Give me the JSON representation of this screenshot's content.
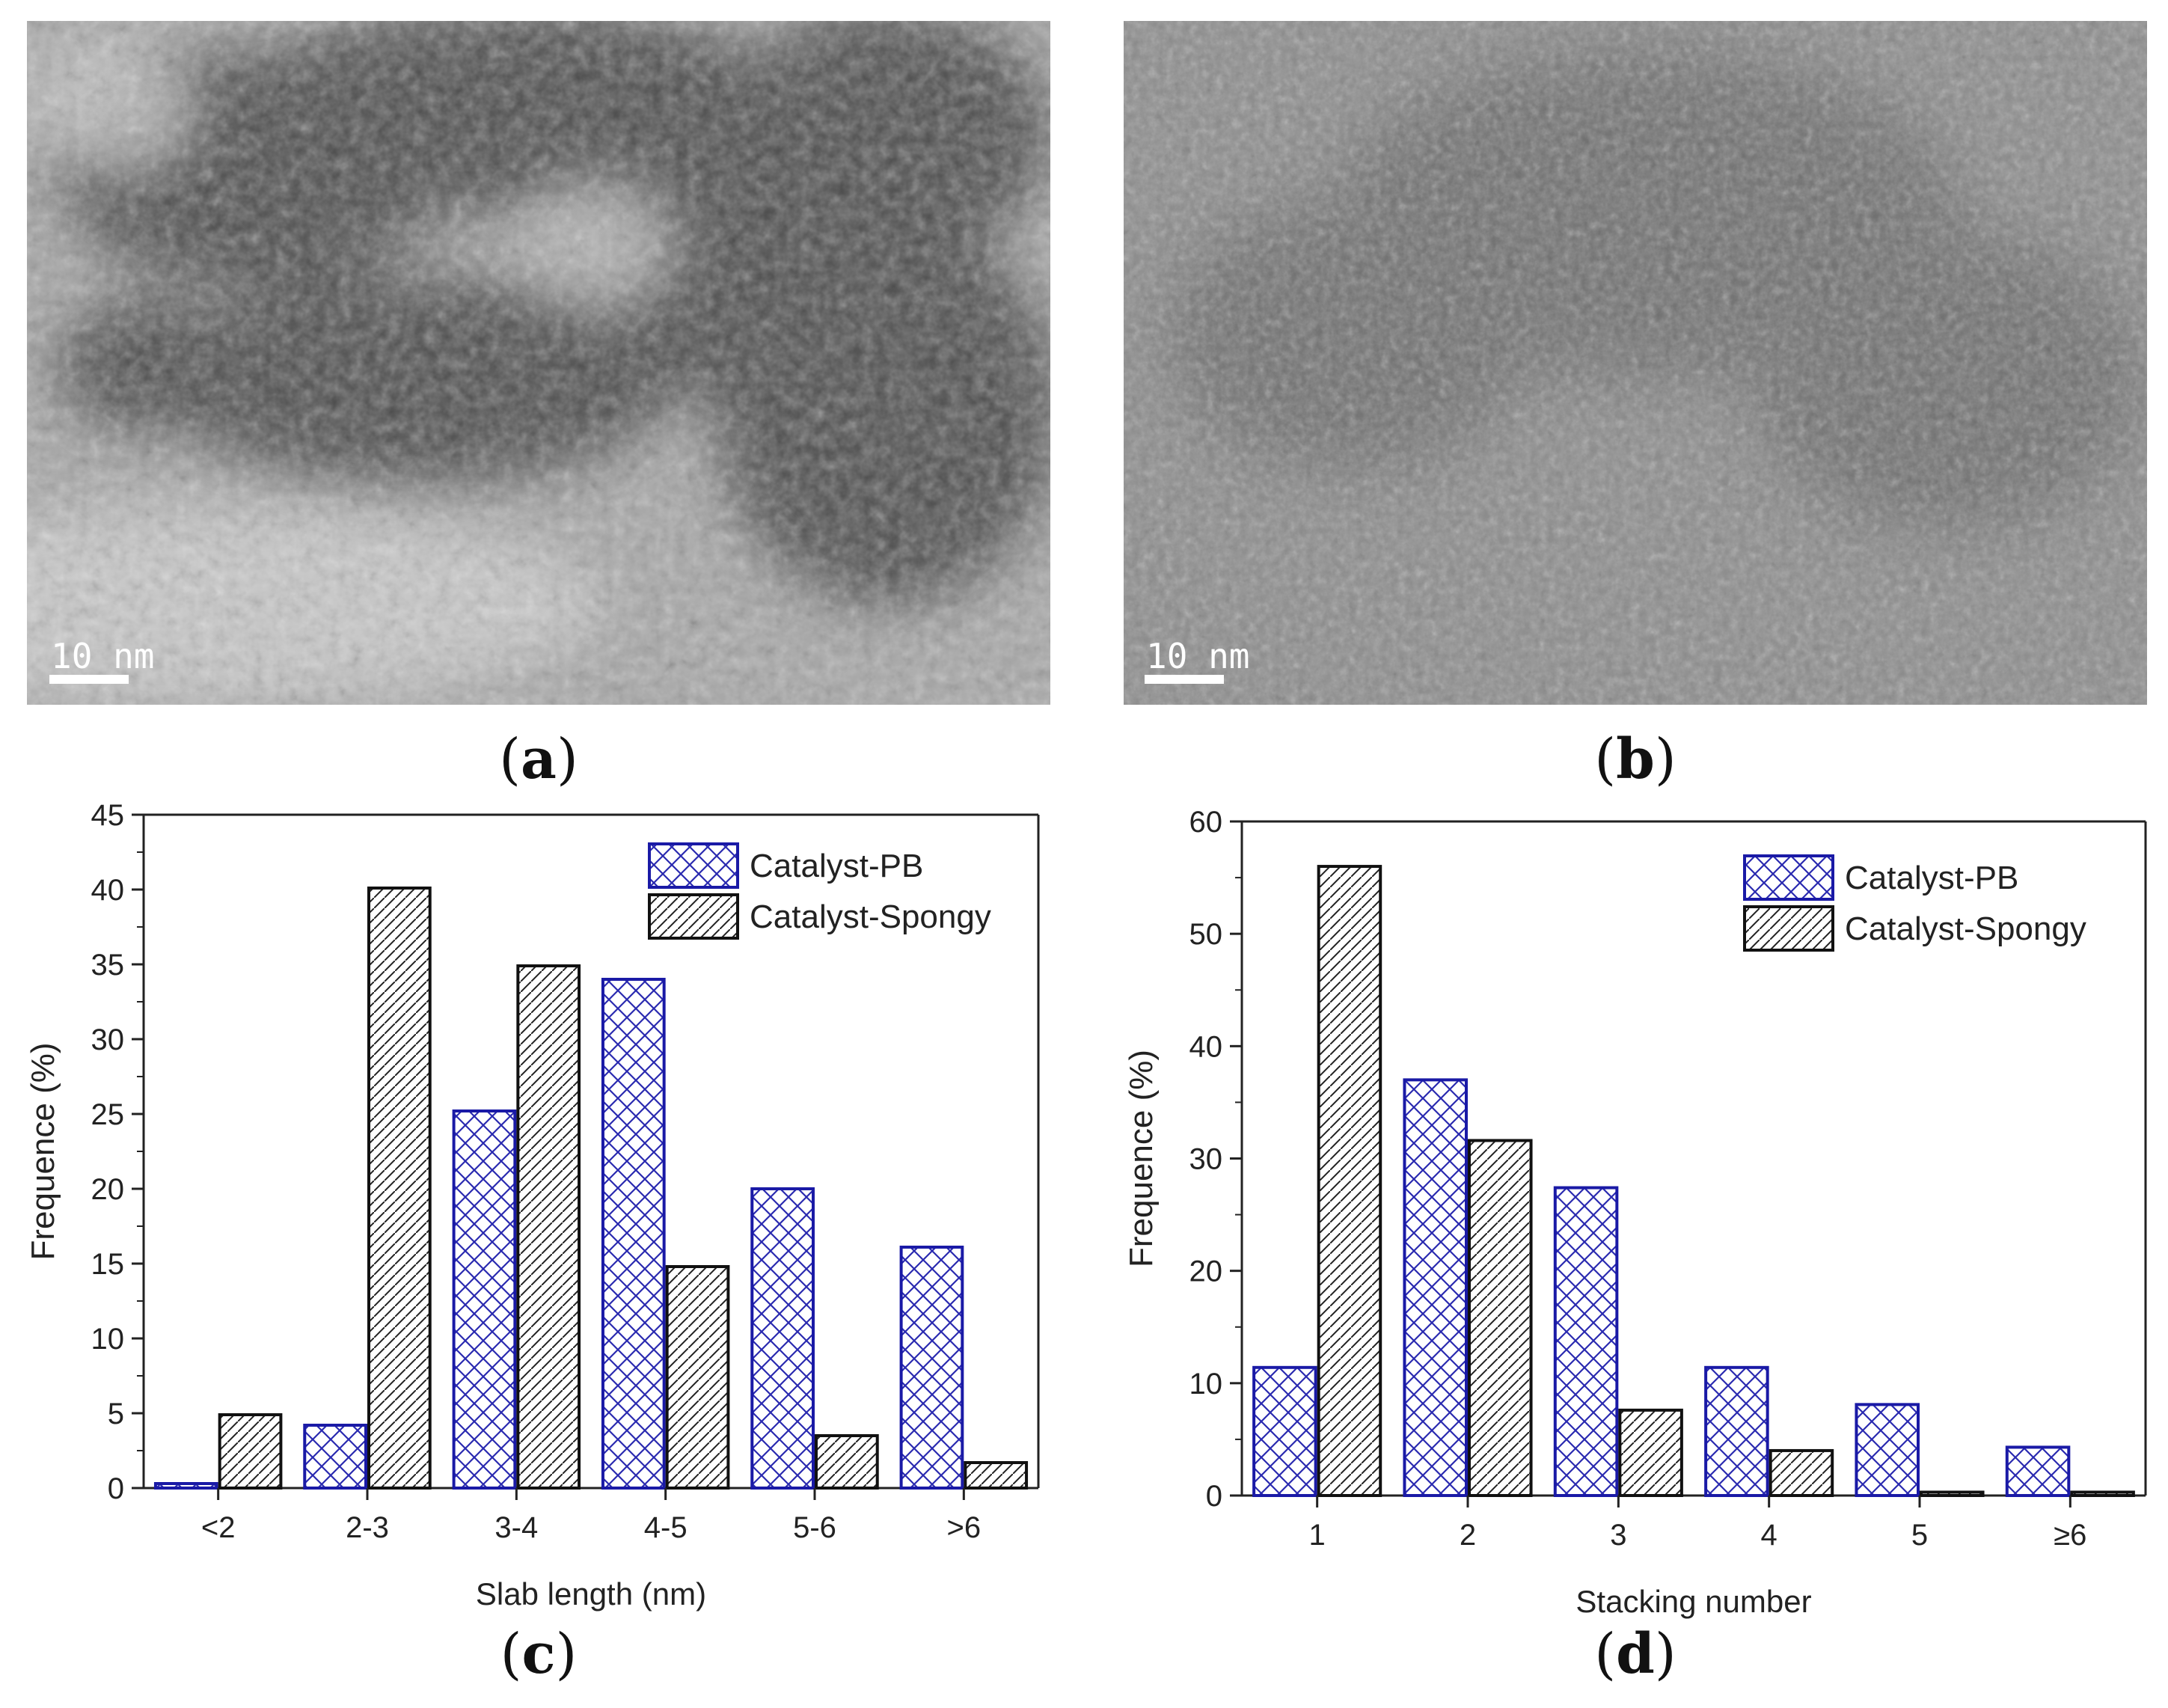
{
  "micrographs": [
    {
      "id": "a",
      "scalebar_label": "10 nm",
      "panel_letter": "a"
    },
    {
      "id": "b",
      "scalebar_label": "10 nm",
      "panel_letter": "b"
    }
  ],
  "panel_letters": {
    "c": "c",
    "d": "d"
  },
  "colors": {
    "pb": "#1a1aa6",
    "spongy": "#111111"
  },
  "chart_data": [
    {
      "type": "bar",
      "panel": "c",
      "categories": [
        "<2",
        "2-3",
        "3-4",
        "4-5",
        "5-6",
        ">6"
      ],
      "series": [
        {
          "name": "Catalyst-PB",
          "values": [
            0.3,
            4.2,
            25.2,
            34.0,
            20.0,
            16.1
          ],
          "pattern": "crosshatch",
          "color": "#1a1aa6"
        },
        {
          "name": "Catalyst-Spongy",
          "values": [
            4.9,
            40.1,
            34.9,
            14.8,
            3.5,
            1.7
          ],
          "pattern": "diagonal",
          "color": "#111111"
        }
      ],
      "xlabel": "Slab length (nm)",
      "ylabel": "Frequence (%)",
      "ylim": [
        0,
        45
      ],
      "yticks": [
        0,
        5,
        10,
        15,
        20,
        25,
        30,
        35,
        40,
        45
      ],
      "legend_position": "top-right",
      "grid": false
    },
    {
      "type": "bar",
      "panel": "d",
      "categories": [
        "1",
        "2",
        "3",
        "4",
        "5",
        "≥6"
      ],
      "series": [
        {
          "name": "Catalyst-PB",
          "values": [
            11.4,
            37.0,
            27.4,
            11.4,
            8.1,
            4.3
          ],
          "pattern": "crosshatch",
          "color": "#1a1aa6"
        },
        {
          "name": "Catalyst-Spongy",
          "values": [
            56.0,
            31.6,
            7.6,
            4.0,
            0.3,
            0.3
          ],
          "pattern": "diagonal",
          "color": "#111111"
        }
      ],
      "xlabel": "Stacking number",
      "ylabel": "Frequence (%)",
      "ylim": [
        0,
        60
      ],
      "yticks": [
        0,
        10,
        20,
        30,
        40,
        50,
        60
      ],
      "legend_position": "top-right",
      "grid": false
    }
  ]
}
